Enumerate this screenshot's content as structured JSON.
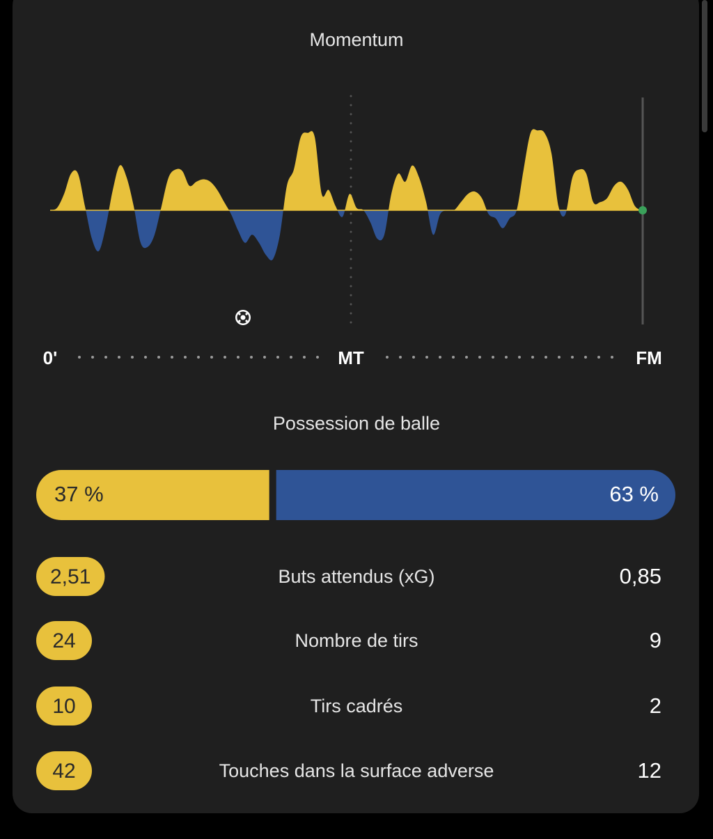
{
  "momentum": {
    "type": "area",
    "title": "Momentum",
    "x_labels": [
      "0'",
      "MT",
      "FM"
    ],
    "ylim": [
      -100,
      100
    ],
    "home_color": "#e8c13c",
    "away_color": "#2f5496",
    "values": [
      0,
      3,
      20,
      45,
      45,
      5,
      -35,
      -50,
      -20,
      25,
      55,
      40,
      5,
      -40,
      -45,
      -30,
      5,
      40,
      50,
      48,
      30,
      35,
      38,
      35,
      25,
      10,
      -5,
      -25,
      -40,
      -30,
      -40,
      -55,
      -60,
      -30,
      30,
      50,
      90,
      95,
      90,
      20,
      25,
      5,
      -8,
      20,
      3,
      0,
      -15,
      -35,
      -30,
      20,
      45,
      35,
      55,
      40,
      10,
      -30,
      -5,
      0,
      0,
      10,
      20,
      23,
      15,
      -5,
      -10,
      -22,
      -10,
      0,
      50,
      95,
      98,
      95,
      70,
      5,
      -5,
      40,
      50,
      45,
      10,
      10,
      15,
      30,
      35,
      25,
      5,
      0
    ]
  },
  "possession": {
    "title": "Possession de balle",
    "values": [
      37,
      63
    ],
    "value_labels": [
      "37 %",
      "63 %"
    ]
  },
  "stats": [
    {
      "label": "Buts attendus (xG)",
      "home": "2,51",
      "away": "0,85"
    },
    {
      "label": "Nombre de tirs",
      "home": "24",
      "away": "9"
    },
    {
      "label": "Tirs cadrés",
      "home": "10",
      "away": "2"
    },
    {
      "label": "Touches dans la surface adverse",
      "home": "42",
      "away": "12"
    }
  ]
}
